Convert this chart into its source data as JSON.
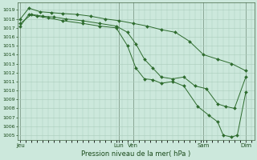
{
  "bg_color": "#cce8dc",
  "grid_color": "#aaccbb",
  "line_color": "#2d6b2d",
  "marker_color": "#2d6b2d",
  "ylabel_ticks": [
    1005,
    1006,
    1007,
    1008,
    1009,
    1010,
    1011,
    1012,
    1013,
    1014,
    1015,
    1016,
    1017,
    1018,
    1019
  ],
  "ylim": [
    1004.5,
    1019.8
  ],
  "xlabel": "Pression niveau de la mer( hPa )",
  "xtick_labels": [
    "Jeu",
    "Lun",
    "Ven",
    "Sam",
    "Dim"
  ],
  "xtick_positions": [
    0,
    3.5,
    4.0,
    6.5,
    8.0
  ],
  "xlim": [
    -0.1,
    8.3
  ],
  "series": [
    {
      "x": [
        0.0,
        0.3,
        0.7,
        1.1,
        1.5,
        2.0,
        2.5,
        3.0,
        3.5,
        4.0,
        4.5,
        5.0,
        5.5,
        6.0,
        6.5,
        7.0,
        7.5,
        8.0
      ],
      "y": [
        1018.0,
        1019.2,
        1018.8,
        1018.7,
        1018.6,
        1018.5,
        1018.3,
        1018.0,
        1017.8,
        1017.5,
        1017.2,
        1016.8,
        1016.5,
        1015.5,
        1014.0,
        1013.5,
        1013.0,
        1012.2
      ]
    },
    {
      "x": [
        0.0,
        0.4,
        0.8,
        1.2,
        1.6,
        2.2,
        2.8,
        3.4,
        3.8,
        4.1,
        4.4,
        4.7,
        5.0,
        5.4,
        5.8,
        6.2,
        6.6,
        7.0,
        7.3,
        7.6,
        8.0
      ],
      "y": [
        1017.5,
        1018.5,
        1018.3,
        1018.2,
        1018.0,
        1017.8,
        1017.5,
        1017.2,
        1016.5,
        1015.2,
        1013.5,
        1012.5,
        1011.5,
        1011.3,
        1011.5,
        1010.5,
        1010.2,
        1008.5,
        1008.2,
        1008.0,
        1011.5
      ]
    },
    {
      "x": [
        0.0,
        0.3,
        0.6,
        1.0,
        1.5,
        2.2,
        2.8,
        3.4,
        3.8,
        4.1,
        4.4,
        4.7,
        5.0,
        5.4,
        5.8,
        6.3,
        6.7,
        7.0,
        7.2,
        7.5,
        7.7,
        8.0
      ],
      "y": [
        1017.2,
        1018.5,
        1018.3,
        1018.1,
        1017.8,
        1017.5,
        1017.2,
        1017.0,
        1015.0,
        1012.5,
        1011.3,
        1011.2,
        1010.8,
        1011.0,
        1010.5,
        1008.2,
        1007.2,
        1006.5,
        1005.0,
        1004.8,
        1005.0,
        1009.8
      ]
    }
  ]
}
